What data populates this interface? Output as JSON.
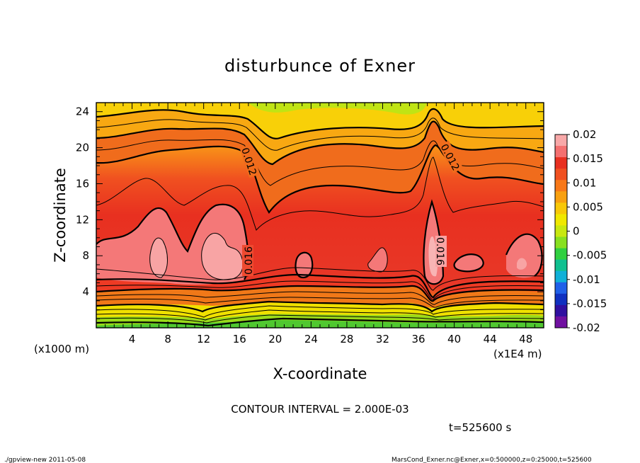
{
  "chart_data": {
    "type": "heatmap",
    "title": "disturbunce of Exner",
    "xlabel": "X-coordinate",
    "ylabel": "Z-coordinate",
    "x_unit": "(x1E4 m)",
    "z_unit": "(x1000 m)",
    "xlim": [
      0,
      50
    ],
    "ylim": [
      0,
      25
    ],
    "x_ticks": [
      4,
      8,
      12,
      16,
      20,
      24,
      28,
      32,
      36,
      40,
      44,
      48
    ],
    "y_ticks": [
      4,
      8,
      12,
      16,
      20,
      24
    ],
    "colorbar": {
      "ticks": [
        "0.02",
        "0.015",
        "0.01",
        "0.005",
        "0",
        "-0.005",
        "-0.01",
        "-0.015",
        "-0.02"
      ],
      "values": [
        0.02,
        0.015,
        0.01,
        0.005,
        0,
        -0.005,
        -0.01,
        -0.015,
        -0.02
      ],
      "colors": [
        "#f8a8a8",
        "#f47070",
        "#e83020",
        "#f05020",
        "#f87818",
        "#f8a010",
        "#f8c808",
        "#f0e800",
        "#c8e810",
        "#88e020",
        "#30d040",
        "#10c090",
        "#10b0d8",
        "#2060e8",
        "#1030c0",
        "#3010a0",
        "#7010a0"
      ]
    },
    "contour_labels": [
      {
        "text": "0.012",
        "x": 17.5,
        "z": 18.5
      },
      {
        "text": "0.012",
        "x": 39.5,
        "z": 20
      },
      {
        "text": "0.016",
        "x": 17,
        "z": 8
      },
      {
        "text": "0.016",
        "x": 38.5,
        "z": 8.2
      }
    ],
    "contour_interval": "CONTOUR INTERVAL = 2.000E-03",
    "time": "t=525600 s",
    "footer_left": "./gpview-new   2011-05-08",
    "footer_right": "MarsCond_Exner.nc@Exner,x=0:500000,z=0:25000,t=525600"
  }
}
